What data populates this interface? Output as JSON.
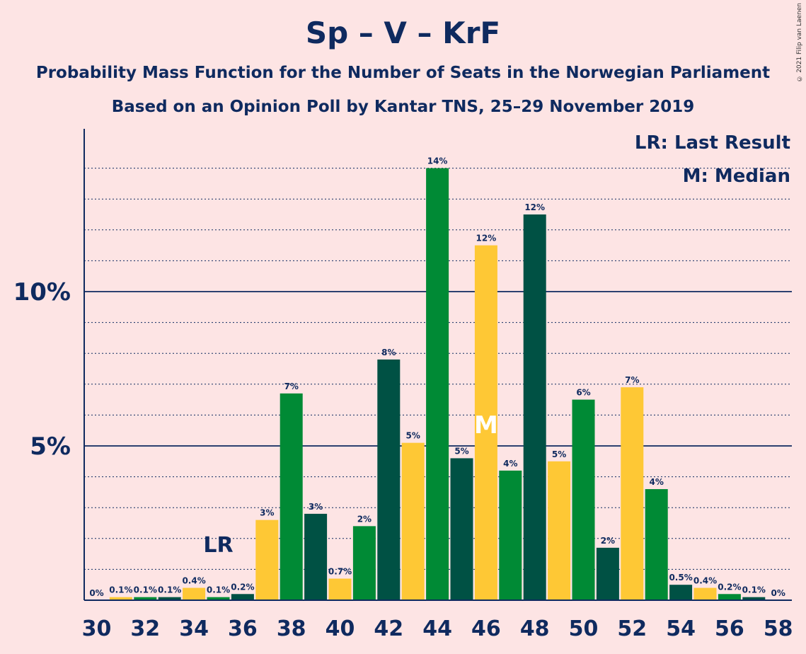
{
  "chart_data": {
    "type": "bar",
    "title": "Sp – V – KrF",
    "subtitle": "Probability Mass Function for the Number of Seats in the Norwegian Parliament",
    "subtitle2": "Based on an Opinion Poll by Kantar TNS, 25–29 November 2019",
    "copyright": "© 2021 Filip van Laenen",
    "x": [
      30,
      31,
      32,
      33,
      34,
      35,
      36,
      37,
      38,
      39,
      40,
      41,
      42,
      43,
      44,
      45,
      46,
      47,
      48,
      49,
      50,
      51,
      52,
      53,
      54,
      55,
      56,
      57,
      58
    ],
    "values": [
      0,
      0.1,
      0.1,
      0.1,
      0.4,
      0.1,
      0.2,
      2.6,
      6.7,
      2.8,
      0.7,
      2.4,
      7.8,
      5.1,
      14.0,
      4.6,
      11.5,
      4.2,
      12.5,
      4.5,
      6.5,
      1.7,
      6.9,
      3.6,
      0.5,
      0.4,
      0.2,
      0.1,
      0
    ],
    "labels": [
      "0%",
      "0.1%",
      "0.1%",
      "0.1%",
      "0.4%",
      "0.1%",
      "0.2%",
      "3%",
      "7%",
      "3%",
      "0.7%",
      "2%",
      "8%",
      "5%",
      "14%",
      "5%",
      "12%",
      "4%",
      "12%",
      "5%",
      "6%",
      "2%",
      "7%",
      "4%",
      "0.5%",
      "0.4%",
      "0.2%",
      "0.1%",
      "0%"
    ],
    "x_tick_labels": [
      "30",
      "32",
      "34",
      "36",
      "38",
      "40",
      "42",
      "44",
      "46",
      "48",
      "50",
      "52",
      "54",
      "56",
      "58"
    ],
    "y_tick_labels": [
      {
        "value": 5,
        "label": "5%"
      },
      {
        "value": 10,
        "label": "10%"
      }
    ],
    "ylim": [
      0,
      15.2
    ],
    "grid": "dotted every 1%, solid at 5% and 10%",
    "colors": {
      "background": "#FDE4E4",
      "dark_green": "#005144",
      "yellow": "#FEC835",
      "green": "#008A35",
      "text": "#0F2A5F"
    },
    "last_result": {
      "seat": 35,
      "label": "LR"
    },
    "median": {
      "seat": 46,
      "label": "M"
    },
    "legend": {
      "last_result": "LR: Last Result",
      "median": "M: Median",
      "position": "top-right"
    }
  }
}
